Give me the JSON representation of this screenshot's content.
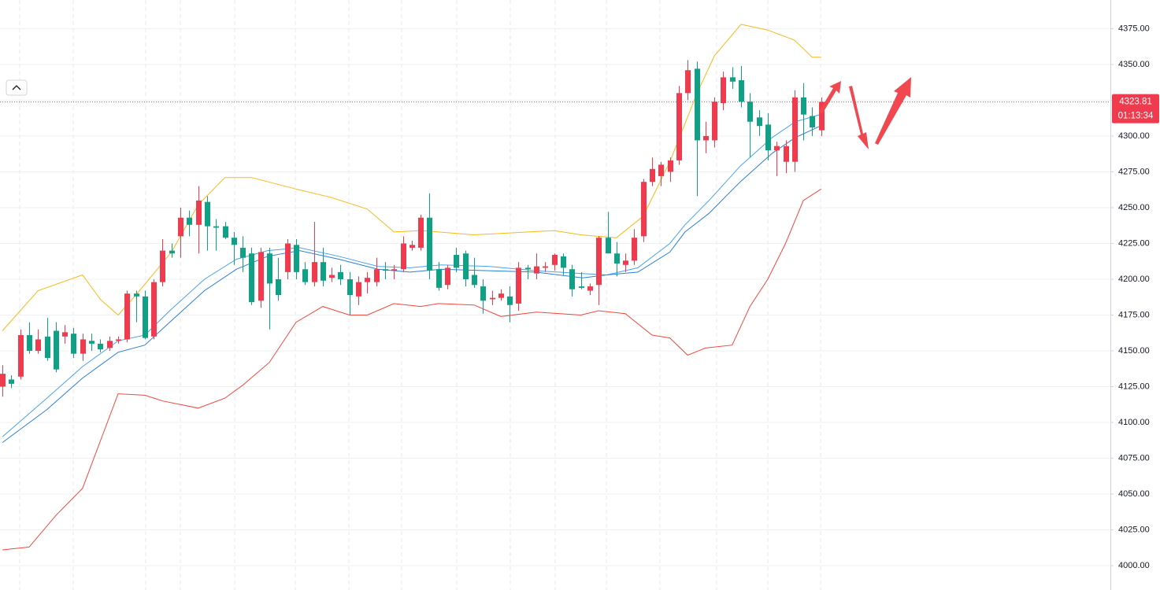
{
  "chart_data": {
    "type": "candlestick",
    "open": [
      4125,
      4130,
      4132,
      4161,
      4150,
      4160,
      4164,
      4160,
      4162,
      4148,
      4157,
      4155,
      4152,
      4157,
      4158,
      4190,
      4188,
      4160,
      4198,
      4220,
      4230,
      4243,
      4238,
      4254,
      4237,
      4237,
      4229,
      4222,
      4218,
      4185,
      4218,
      4200,
      4205,
      4224,
      4207,
      4198,
      4212,
      4201,
      4205,
      4200,
      4188,
      4198,
      4198,
      4207,
      4206,
      4207,
      4222,
      4222,
      4243,
      4207,
      4196,
      4217,
      4218,
      4203,
      4195,
      4186,
      4187,
      4188,
      4183,
      4208,
      4204,
      4208,
      4210,
      4216,
      4207,
      4195,
      4192,
      4196,
      4229,
      4218,
      4210,
      4213,
      4230,
      4268,
      4272,
      4275,
      4283,
      4330,
      4347,
      4297,
      4297,
      4323,
      4341,
      4339,
      4324,
      4313,
      4308,
      4290,
      4282,
      4282,
      4327,
      4314,
      4304
    ],
    "high": [
      4140,
      4133,
      4165,
      4170,
      4165,
      4173,
      4170,
      4168,
      4166,
      4162,
      4162,
      4158,
      4160,
      4160,
      4192,
      4192,
      4192,
      4200,
      4228,
      4225,
      4250,
      4248,
      4265,
      4258,
      4242,
      4240,
      4233,
      4230,
      4222,
      4222,
      4222,
      4215,
      4228,
      4228,
      4212,
      4240,
      4222,
      4208,
      4210,
      4205,
      4202,
      4205,
      4215,
      4212,
      4210,
      4230,
      4227,
      4245,
      4260,
      4212,
      4210,
      4222,
      4220,
      4215,
      4200,
      4192,
      4193,
      4195,
      4212,
      4210,
      4218,
      4212,
      4218,
      4218,
      4210,
      4205,
      4197,
      4230,
      4247,
      4226,
      4218,
      4235,
      4270,
      4285,
      4282,
      4285,
      4335,
      4353,
      4352,
      4310,
      4327,
      4345,
      4348,
      4349,
      4330,
      4318,
      4316,
      4296,
      4297,
      4332,
      4337,
      4320,
      4327
    ],
    "low": [
      4118,
      4124,
      4130,
      4148,
      4148,
      4143,
      4135,
      4155,
      4145,
      4143,
      4150,
      4149,
      4150,
      4155,
      4156,
      4170,
      4158,
      4158,
      4195,
      4215,
      4215,
      4230,
      4218,
      4220,
      4220,
      4228,
      4210,
      4205,
      4182,
      4180,
      4165,
      4185,
      4200,
      4200,
      4196,
      4195,
      4195,
      4198,
      4196,
      4175,
      4182,
      4190,
      4195,
      4200,
      4200,
      4205,
      4220,
      4220,
      4200,
      4192,
      4193,
      4205,
      4195,
      4194,
      4176,
      4182,
      4185,
      4170,
      4178,
      4200,
      4200,
      4205,
      4206,
      4203,
      4188,
      4193,
      4189,
      4182,
      4222,
      4202,
      4205,
      4210,
      4226,
      4265,
      4265,
      4268,
      4280,
      4325,
      4258,
      4288,
      4292,
      4318,
      4333,
      4320,
      4285,
      4300,
      4283,
      4272,
      4274,
      4275,
      4297,
      4300,
      4300
    ],
    "close": [
      4134,
      4127,
      4161,
      4150,
      4158,
      4145,
      4137,
      4163,
      4148,
      4158,
      4155,
      4151,
      4157,
      4158,
      4190,
      4188,
      4159,
      4198,
      4220,
      4218,
      4243,
      4238,
      4255,
      4237,
      4236,
      4229,
      4224,
      4215,
      4184,
      4219,
      4197,
      4189,
      4225,
      4205,
      4198,
      4212,
      4199,
      4203,
      4200,
      4189,
      4198,
      4201,
      4207,
      4206,
      4207,
      4225,
      4224,
      4243,
      4206,
      4194,
      4208,
      4208,
      4200,
      4196,
      4185,
      4187,
      4190,
      4182,
      4208,
      4207,
      4209,
      4209,
      4217,
      4208,
      4193,
      4194,
      4195,
      4229,
      4218,
      4211,
      4213,
      4229,
      4268,
      4277,
      4280,
      4283,
      4330,
      4346,
      4297,
      4300,
      4324,
      4341,
      4338,
      4324,
      4310,
      4307,
      4290,
      4293,
      4293,
      4327,
      4315,
      4306,
      4323.81
    ],
    "up_color": "#ef3b4d",
    "down_color": "#10a085",
    "lines": [
      {
        "color": "#f7b91a",
        "x": [
          0,
          4,
          9,
          11,
          13,
          15,
          19,
          22,
          25,
          28,
          33,
          37,
          41,
          44,
          47,
          49,
          53,
          62,
          65,
          69,
          72,
          75,
          78,
          80,
          83,
          86,
          89,
          91,
          92
        ],
        "values": [
          4164,
          4192,
          4203,
          4186,
          4175,
          4189,
          4219,
          4252,
          4271,
          4271,
          4263,
          4257,
          4249,
          4233,
          4234,
          4233,
          4231,
          4234,
          4231,
          4229,
          4244,
          4282,
          4329,
          4356,
          4378,
          4374,
          4367,
          4355,
          4355
        ]
      },
      {
        "color": "#f0483e",
        "x": [
          0,
          3,
          6,
          9,
          13,
          16,
          18,
          22,
          25,
          27,
          30,
          33,
          36,
          39,
          41,
          44,
          47,
          49,
          53,
          56,
          60,
          65,
          67,
          70,
          73,
          75,
          77,
          79,
          82,
          84,
          86,
          88,
          90,
          92
        ],
        "values": [
          4011,
          4013,
          4035,
          4054,
          4120,
          4119,
          4115,
          4110,
          4117,
          4126,
          4142,
          4170,
          4181,
          4175,
          4175,
          4183,
          4181,
          4183,
          4182,
          4174,
          4177,
          4175,
          4178,
          4176,
          4161,
          4159,
          4147,
          4152,
          4154,
          4181,
          4200,
          4225,
          4255,
          4263
        ]
      },
      {
        "color": "#4aa3ea",
        "x": [
          0,
          5,
          9,
          13,
          16,
          18.8,
          22.7,
          26.3,
          29.8,
          33.4,
          37.8,
          42.2,
          45.8,
          49.3,
          54.6,
          59.9,
          65.2,
          67.9,
          71.4,
          75,
          76.7,
          79.4,
          82.9,
          86.5,
          89.1,
          91.9
        ],
        "values": [
          4090,
          4117,
          4139,
          4157,
          4161,
          4178,
          4200,
          4214,
          4220,
          4222,
          4216,
          4209,
          4208,
          4210,
          4209,
          4206,
          4204,
          4203,
          4208,
          4225,
          4238,
          4255,
          4279,
          4299,
          4310,
          4315
        ]
      },
      {
        "color": "#2b7fd6",
        "x": [
          0,
          5,
          9,
          13,
          16,
          18.8,
          22.7,
          26.3,
          29.8,
          33.4,
          37.8,
          42.2,
          45.8,
          49.3,
          54.6,
          59.9,
          65.2,
          67.9,
          71.4,
          75,
          76.7,
          79.4,
          82.9,
          86.5,
          89.1,
          91.9
        ],
        "values": [
          4086,
          4109,
          4131,
          4149,
          4154,
          4170,
          4192,
          4207,
          4216,
          4220,
          4214,
          4207,
          4205,
          4207,
          4206,
          4205,
          4201,
          4203,
          4205,
          4219,
          4233,
          4246,
          4268,
          4288,
          4299,
          4307
        ]
      }
    ],
    "xlim": [
      -0.27,
      124.5
    ],
    "ylim": [
      3983,
      4395
    ],
    "yticks": [
      {
        "value": 4000,
        "label": "4000.00"
      },
      {
        "value": 4025,
        "label": "4025.00"
      },
      {
        "value": 4050,
        "label": "4050.00"
      },
      {
        "value": 4075,
        "label": "4075.00"
      },
      {
        "value": 4100,
        "label": "4100.00"
      },
      {
        "value": 4125,
        "label": "4125.00"
      },
      {
        "value": 4150,
        "label": "4150.00"
      },
      {
        "value": 4175,
        "label": "4175.00"
      },
      {
        "value": 4200,
        "label": "4200.00"
      },
      {
        "value": 4225,
        "label": "4225.00"
      },
      {
        "value": 4250,
        "label": "4250.00"
      },
      {
        "value": 4275,
        "label": "4275.00"
      },
      {
        "value": 4300,
        "label": "4300.00"
      },
      {
        "value": 4325,
        "label": "4325.00"
      },
      {
        "value": 4350,
        "label": "4350.00"
      },
      {
        "value": 4375,
        "label": "4375.00"
      }
    ],
    "grid": true,
    "last_price": 4323.81,
    "countdown": "01:13:34"
  }
}
